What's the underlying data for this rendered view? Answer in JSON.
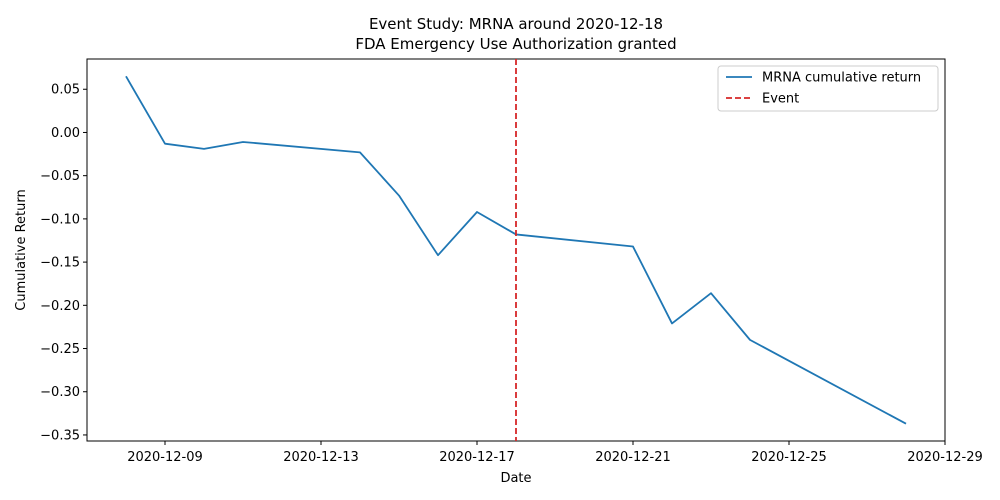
{
  "chart_data": {
    "type": "line",
    "title_line1": "Event Study: MRNA around 2020-12-18",
    "title_line2": "FDA Emergency Use Authorization granted",
    "xlabel": "Date",
    "ylabel": "Cumulative Return",
    "x_tick_labels": [
      "2020-12-09",
      "2020-12-13",
      "2020-12-17",
      "2020-12-21",
      "2020-12-25",
      "2020-12-29"
    ],
    "y_tick_labels": [
      "0.05",
      "0.00",
      "−0.05",
      "−0.10",
      "−0.15",
      "−0.20",
      "−0.25",
      "−0.30",
      "−0.35"
    ],
    "y_ticks": [
      0.05,
      0.0,
      -0.05,
      -0.1,
      -0.15,
      -0.2,
      -0.25,
      -0.3,
      -0.35
    ],
    "xlim": [
      "2020-12-07",
      "2020-12-29"
    ],
    "ylim": [
      -0.357,
      0.085
    ],
    "grid": false,
    "legend_position": "top-right",
    "series": [
      {
        "name": "MRNA cumulative return",
        "color": "#1f77b4",
        "x": [
          "2020-12-08",
          "2020-12-09",
          "2020-12-10",
          "2020-12-11",
          "2020-12-14",
          "2020-12-15",
          "2020-12-16",
          "2020-12-17",
          "2020-12-18",
          "2020-12-21",
          "2020-12-22",
          "2020-12-23",
          "2020-12-24",
          "2020-12-28"
        ],
        "y": [
          0.065,
          -0.013,
          -0.019,
          -0.011,
          -0.023,
          -0.073,
          -0.142,
          -0.092,
          -0.118,
          -0.132,
          -0.221,
          -0.186,
          -0.24,
          -0.337
        ]
      }
    ],
    "event": {
      "name": "Event",
      "date": "2020-12-18",
      "color": "#d62728",
      "style": "dashed"
    }
  }
}
